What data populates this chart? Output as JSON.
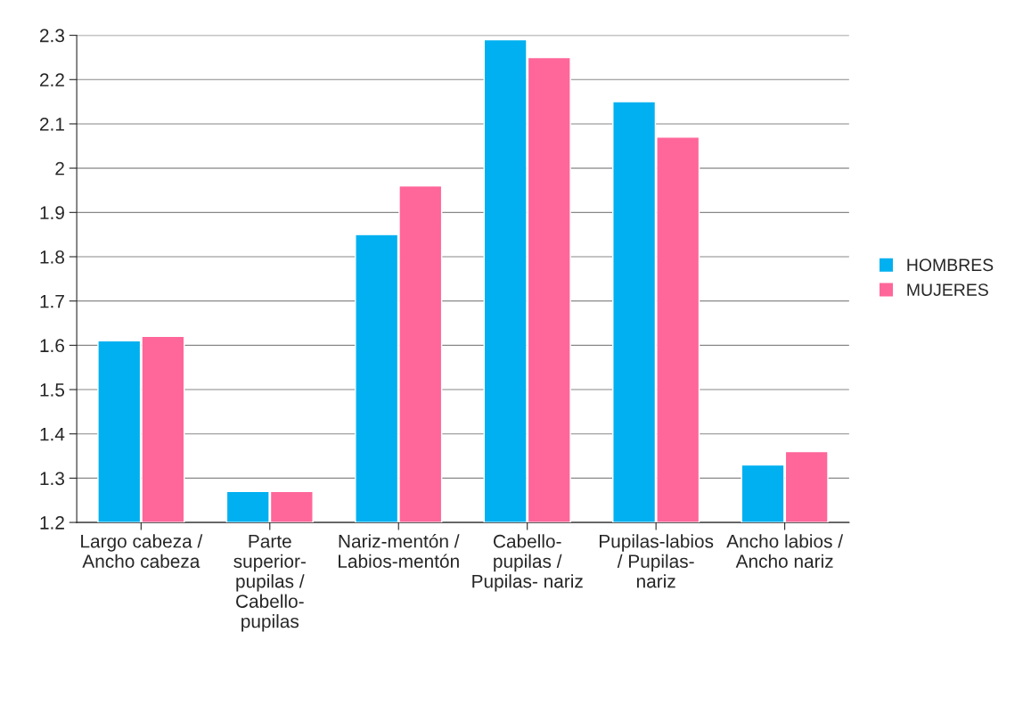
{
  "chart_data": {
    "type": "bar",
    "categories": [
      "Largo cabeza / Ancho cabeza",
      "Parte superior-pupilas / Cabello-pupilas",
      "Nariz-mentón / Labios-mentón",
      "Cabello-pupilas / Pupilas- nariz",
      "Pupilas-labios / Pupilas- nariz",
      "Ancho labios / Ancho nariz"
    ],
    "series": [
      {
        "name": "HOMBRES",
        "color": "#00b0f0",
        "values": [
          1.61,
          1.27,
          1.85,
          2.29,
          2.15,
          1.33
        ]
      },
      {
        "name": "MUJERES",
        "color": "#ff6699",
        "values": [
          1.62,
          1.27,
          1.96,
          2.25,
          2.07,
          1.36
        ]
      }
    ],
    "ylim": [
      1.2,
      2.3
    ],
    "yticks": [
      1.2,
      1.3,
      1.4,
      1.5,
      1.6,
      1.7,
      1.8,
      1.9,
      2,
      2.1,
      2.2,
      2.3
    ],
    "grid": "y",
    "legend": "right"
  }
}
